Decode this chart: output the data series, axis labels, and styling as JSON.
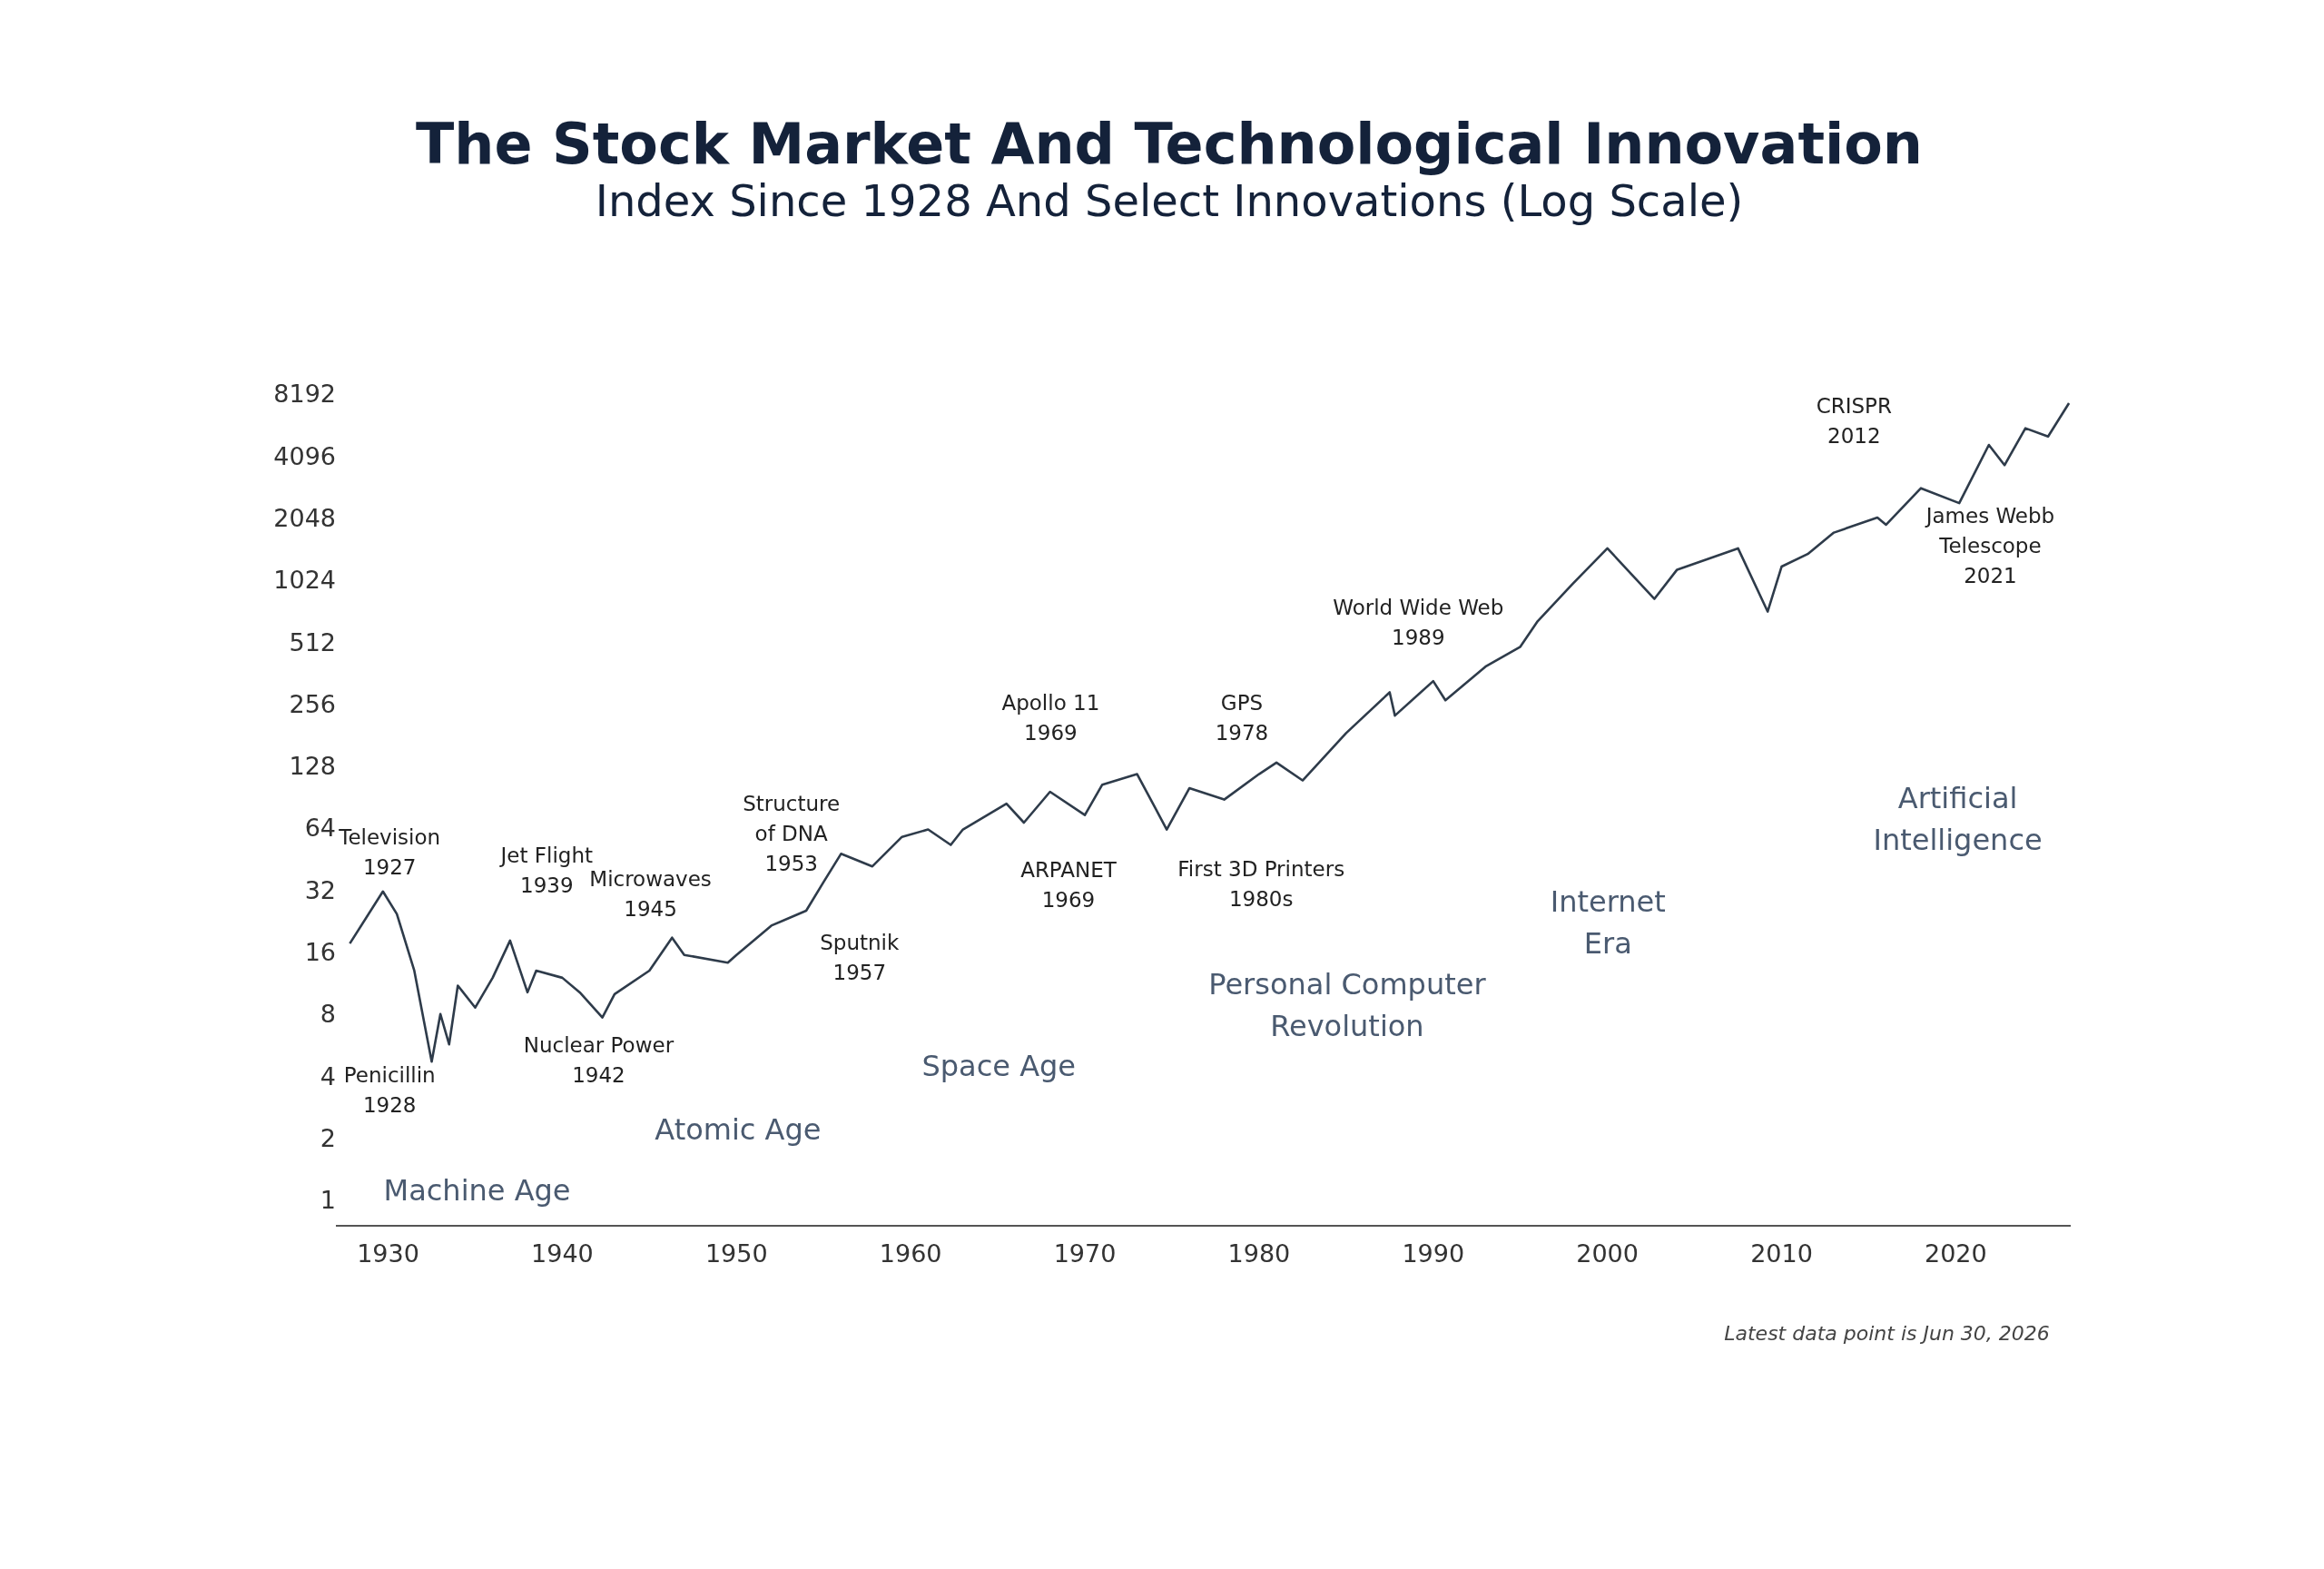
{
  "chart_data": {
    "type": "line",
    "title": "The Stock Market And Technological Innovation",
    "subtitle": "Index Since 1928 And Select Innovations (Log Scale)",
    "x": [
      1927.8,
      1929.7,
      1930.5,
      1931.5,
      1932.5,
      1933,
      1933.5,
      1934,
      1935,
      1936,
      1937,
      1938,
      1938.5,
      1940,
      1941,
      1942.3,
      1943,
      1945,
      1946.3,
      1947,
      1949.5,
      1950,
      1952,
      1954,
      1955,
      1956,
      1957.8,
      1959.5,
      1961,
      1962.3,
      1963,
      1965.5,
      1966.5,
      1968,
      1970,
      1971,
      1973,
      1974.7,
      1976,
      1978,
      1980,
      1981,
      1982.5,
      1985,
      1987.5,
      1987.8,
      1990,
      1990.7,
      1993,
      1995,
      1996,
      1998,
      2000,
      2002.7,
      2004,
      2007.5,
      2009.2,
      2010,
      2011.5,
      2013,
      2015.5,
      2016,
      2018,
      2020.2,
      2021.9,
      2022.8,
      2024,
      2025.3,
      2026.5
    ],
    "series": [
      {
        "color": "#2e3b4a",
        "values": [
          17.6,
          31.5,
          24.5,
          13,
          4.7,
          8,
          5.7,
          11,
          8.6,
          12,
          18.2,
          10.2,
          13,
          12,
          10.2,
          7.7,
          10,
          13,
          18.8,
          15.5,
          14.2,
          15.5,
          21.5,
          25.4,
          35,
          48,
          41.7,
          58,
          63,
          53,
          63,
          84,
          68,
          96,
          74,
          104,
          117,
          63,
          100,
          88,
          117,
          133,
          109,
          185,
          292,
          225,
          331,
          267,
          389,
          486,
          647,
          980,
          1460,
          830,
          1150,
          1460,
          720,
          1190,
          1370,
          1740,
          2060,
          1900,
          2860,
          2420,
          4640,
          3700,
          5590,
          5100,
          7400
        ]
      }
    ],
    "log": "y",
    "xlim": [
      1927,
      2026.6
    ],
    "ylim": [
      0.75,
      8192
    ],
    "xticks": [
      1930,
      1940,
      1950,
      1960,
      1970,
      1980,
      1990,
      2000,
      2010,
      2020
    ],
    "yticks": [
      1,
      2,
      4,
      8,
      16,
      32,
      64,
      128,
      256,
      512,
      1024,
      2048,
      4096,
      8192
    ],
    "grid": false,
    "marker": "none",
    "line_style": "solid",
    "annotations": [
      "Television\n1927",
      "Penicillin\n1928",
      "Jet Flight\n1939",
      "Microwaves\n1945",
      "Nuclear Power\n1942",
      "Structure\nof DNA\n1953",
      "Sputnik\n1957",
      "Apollo 11\n1969",
      "ARPANET\n1969",
      "GPS\n1978",
      "First 3D Printers\n1980s",
      "World Wide Web\n1989",
      "CRISPR\n2012",
      "James Webb\nTelescope\n2021",
      "Machine Age",
      "Atomic Age",
      "Space Age",
      "Personal Computer\nRevolution",
      "Internet\nEra",
      "Artificial\nIntelligence",
      "Latest data point is Jun 30, 2026"
    ]
  }
}
